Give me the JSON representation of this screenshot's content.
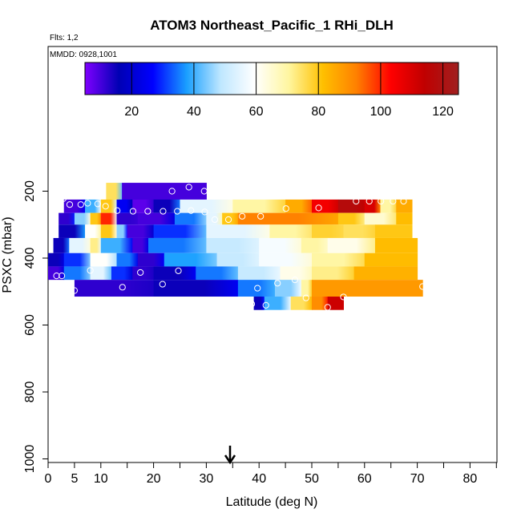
{
  "chart_data": {
    "type": "heatmap",
    "title": "ATOM3 Northeast_Pacific_1 RHi_DLH",
    "annotations": [
      "Flts: 1,2",
      "MMDD: 0928,1001"
    ],
    "xlabel": "Latitude (deg N)",
    "ylabel": "PSXC (mbar)",
    "xlim": [
      0,
      85
    ],
    "ylim": [
      1000,
      100
    ],
    "x_ticks": [
      0,
      5,
      10,
      20,
      30,
      40,
      50,
      60,
      70,
      80
    ],
    "y_ticks": [
      200,
      400,
      600,
      800,
      1000
    ],
    "colorbar": {
      "range": [
        5,
        125
      ],
      "ticks": [
        20,
        40,
        60,
        80,
        100,
        120
      ],
      "colors": [
        "#7f00ff",
        "#0000b4",
        "#0000ff",
        "#1aa0ff",
        "#bfe7ff",
        "#ffffff",
        "#fff6a0",
        "#ffc000",
        "#ff8000",
        "#ff0000",
        "#c00000",
        "#a02020"
      ]
    },
    "arrow_marker_latitude": 34.5,
    "bands": [
      {
        "p_top": 175,
        "p_bot": 230,
        "segments": [
          [
            11,
            14,
            75
          ],
          [
            14,
            30,
            10
          ]
        ]
      },
      {
        "p_top": 225,
        "p_bot": 265,
        "segments": [
          [
            3,
            7,
            10
          ],
          [
            7,
            10,
            40
          ],
          [
            10,
            13,
            80
          ],
          [
            13,
            16,
            25
          ],
          [
            16,
            20,
            8
          ],
          [
            20,
            25,
            15
          ],
          [
            25,
            35,
            55
          ],
          [
            35,
            45,
            70
          ],
          [
            45,
            50,
            85
          ],
          [
            50,
            55,
            105
          ],
          [
            55,
            60,
            118
          ],
          [
            60,
            63,
            110
          ],
          [
            63,
            66,
            70
          ],
          [
            66,
            69,
            85
          ]
        ]
      },
      {
        "p_top": 265,
        "p_bot": 300,
        "segments": [
          [
            2,
            5,
            12
          ],
          [
            5,
            8,
            45
          ],
          [
            8,
            10,
            80
          ],
          [
            10,
            13,
            100
          ],
          [
            13,
            17,
            12
          ],
          [
            17,
            24,
            10
          ],
          [
            24,
            30,
            35
          ],
          [
            30,
            33,
            55
          ],
          [
            33,
            36,
            80
          ],
          [
            36,
            55,
            92
          ],
          [
            55,
            60,
            80
          ],
          [
            60,
            66,
            65
          ],
          [
            66,
            69,
            82
          ]
        ]
      },
      {
        "p_top": 300,
        "p_bot": 340,
        "segments": [
          [
            2,
            7,
            15
          ],
          [
            7,
            10,
            60
          ],
          [
            10,
            13,
            80
          ],
          [
            13,
            15,
            45
          ],
          [
            15,
            20,
            10
          ],
          [
            20,
            30,
            30
          ],
          [
            30,
            42,
            55
          ],
          [
            42,
            50,
            70
          ],
          [
            50,
            56,
            78
          ],
          [
            56,
            62,
            75
          ],
          [
            62,
            69,
            80
          ]
        ]
      },
      {
        "p_top": 340,
        "p_bot": 385,
        "segments": [
          [
            1,
            4,
            15
          ],
          [
            4,
            8,
            55
          ],
          [
            8,
            10,
            72
          ],
          [
            10,
            16,
            40
          ],
          [
            16,
            19,
            10
          ],
          [
            19,
            30,
            35
          ],
          [
            30,
            40,
            50
          ],
          [
            40,
            48,
            58
          ],
          [
            48,
            53,
            70
          ],
          [
            53,
            62,
            62
          ],
          [
            62,
            70,
            82
          ]
        ]
      },
      {
        "p_top": 385,
        "p_bot": 425,
        "segments": [
          [
            0,
            3,
            15
          ],
          [
            3,
            8,
            30
          ],
          [
            8,
            13,
            60
          ],
          [
            13,
            17,
            35
          ],
          [
            17,
            22,
            12
          ],
          [
            22,
            32,
            38
          ],
          [
            32,
            40,
            50
          ],
          [
            40,
            50,
            58
          ],
          [
            50,
            60,
            70
          ],
          [
            60,
            70,
            82
          ]
        ]
      },
      {
        "p_top": 425,
        "p_bot": 465,
        "segments": [
          [
            0,
            3,
            10
          ],
          [
            3,
            8,
            35
          ],
          [
            8,
            12,
            55
          ],
          [
            12,
            16,
            30
          ],
          [
            16,
            20,
            12
          ],
          [
            20,
            28,
            15
          ],
          [
            28,
            36,
            35
          ],
          [
            36,
            44,
            50
          ],
          [
            44,
            50,
            62
          ],
          [
            50,
            58,
            72
          ],
          [
            58,
            70,
            84
          ]
        ]
      },
      {
        "p_top": 465,
        "p_bot": 515,
        "segments": [
          [
            5,
            20,
            12
          ],
          [
            20,
            36,
            15
          ],
          [
            36,
            43,
            35
          ],
          [
            43,
            48,
            45
          ],
          [
            48,
            50,
            70
          ],
          [
            50,
            71,
            88
          ]
        ]
      },
      {
        "p_top": 515,
        "p_bot": 555,
        "segments": [
          [
            39,
            41,
            15
          ],
          [
            41,
            46,
            40
          ],
          [
            46,
            50,
            75
          ],
          [
            50,
            53,
            90
          ],
          [
            53,
            56,
            112
          ]
        ]
      }
    ],
    "points": [
      [
        2.9,
        222
      ],
      [
        4.1,
        240
      ],
      [
        6.2,
        240
      ],
      [
        7.5,
        236
      ],
      [
        9.4,
        238
      ],
      [
        10.9,
        245
      ],
      [
        13.1,
        258
      ],
      [
        16.1,
        260
      ],
      [
        18.9,
        260
      ],
      [
        21.8,
        260
      ],
      [
        24.5,
        260
      ],
      [
        27.1,
        258
      ],
      [
        29.7,
        262
      ],
      [
        31.6,
        285
      ],
      [
        34.2,
        285
      ],
      [
        36.8,
        275
      ],
      [
        40.3,
        275
      ],
      [
        45.1,
        252
      ],
      [
        51.3,
        250
      ],
      [
        58.4,
        230
      ],
      [
        60.9,
        230
      ],
      [
        63.1,
        230
      ],
      [
        65.4,
        230
      ],
      [
        67.4,
        230
      ],
      [
        23.5,
        200
      ],
      [
        26.7,
        188
      ],
      [
        29.6,
        200
      ],
      [
        1.6,
        453
      ],
      [
        2.6,
        453
      ],
      [
        5.0,
        497
      ],
      [
        8.0,
        437
      ],
      [
        14.1,
        487
      ],
      [
        17.5,
        443
      ],
      [
        21.7,
        478
      ],
      [
        24.7,
        438
      ],
      [
        38.6,
        537
      ],
      [
        39.7,
        490
      ],
      [
        41.3,
        541
      ],
      [
        43.5,
        475
      ],
      [
        46.8,
        465
      ],
      [
        48.9,
        519
      ],
      [
        53.0,
        547
      ],
      [
        56.0,
        516
      ],
      [
        71.0,
        485
      ]
    ]
  }
}
